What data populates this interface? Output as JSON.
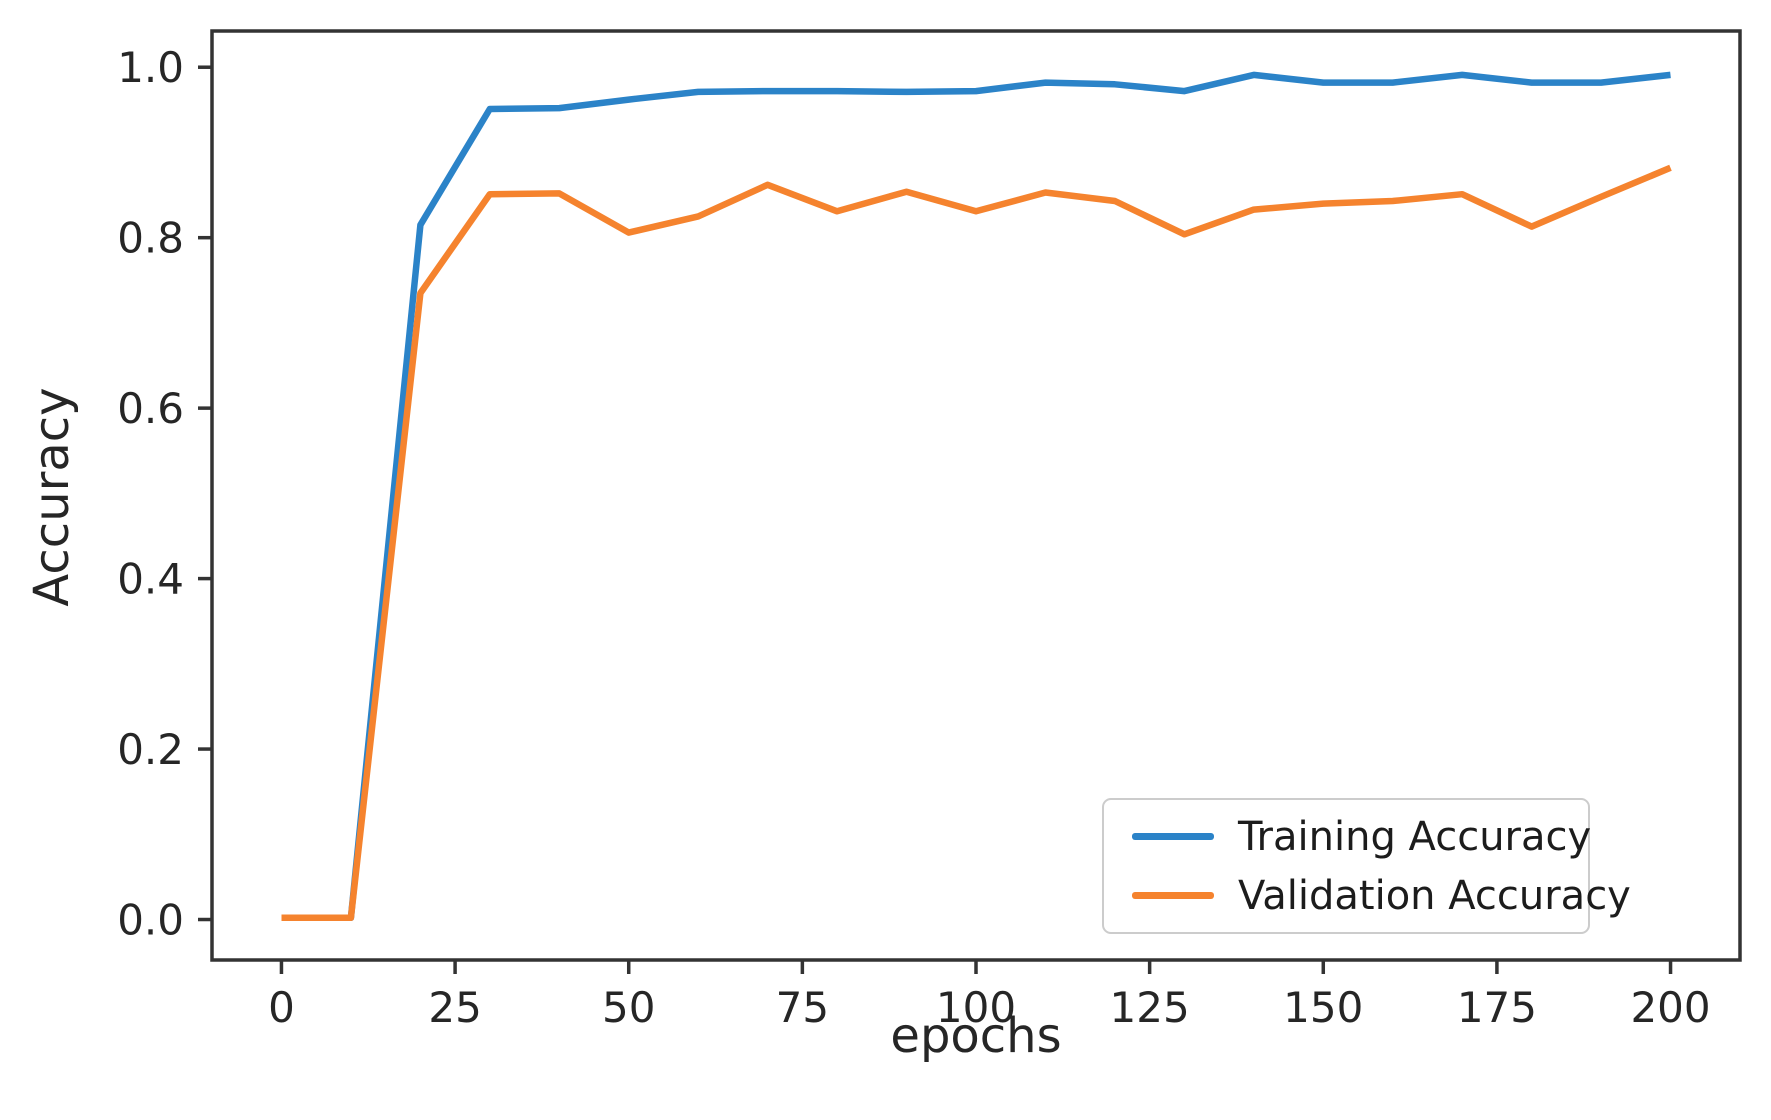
{
  "chart_data": {
    "type": "line",
    "title": "",
    "xlabel": "epochs",
    "ylabel": "Accuracy",
    "x": [
      0,
      10,
      20,
      30,
      40,
      50,
      60,
      70,
      80,
      90,
      100,
      110,
      120,
      130,
      140,
      150,
      160,
      170,
      180,
      190,
      200
    ],
    "series": [
      {
        "name": "Training Accuracy",
        "color": "#2b83c8",
        "values": [
          0.002,
          0.002,
          0.815,
          0.951,
          0.952,
          0.962,
          0.971,
          0.972,
          0.972,
          0.971,
          0.972,
          0.982,
          0.98,
          0.972,
          0.991,
          0.982,
          0.982,
          0.991,
          0.982,
          0.982,
          0.991
        ]
      },
      {
        "name": "Validation Accuracy",
        "color": "#f5832e",
        "values": [
          0.002,
          0.002,
          0.735,
          0.851,
          0.852,
          0.806,
          0.825,
          0.862,
          0.831,
          0.854,
          0.831,
          0.853,
          0.843,
          0.804,
          0.833,
          0.84,
          0.843,
          0.851,
          0.813,
          0.848,
          0.882
        ]
      }
    ],
    "x_tick_values": [
      0,
      25,
      50,
      75,
      100,
      125,
      150,
      175,
      200
    ],
    "x_tick_labels": [
      "0",
      "25",
      "50",
      "75",
      "100",
      "125",
      "150",
      "175",
      "200"
    ],
    "y_tick_values": [
      0.0,
      0.2,
      0.4,
      0.6,
      0.8,
      1.0
    ],
    "y_tick_labels": [
      "0.0",
      "0.2",
      "0.4",
      "0.6",
      "0.8",
      "1.0"
    ],
    "xlim": [
      -10,
      210
    ],
    "ylim": [
      -0.0475,
      1.0425
    ],
    "grid": false,
    "legend_position": "lower right",
    "axis_color": "#333333",
    "tick_label_color": "#262626",
    "line_width": 6.5
  }
}
